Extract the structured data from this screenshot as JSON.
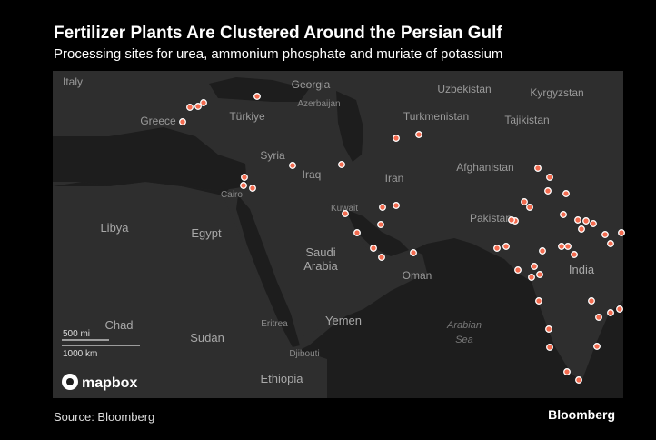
{
  "header": {
    "title": "Fertilizer Plants Are Clustered Around the Persian Gulf",
    "subtitle": "Processing sites for urea, ammonium phosphate and muriate of potassium"
  },
  "map": {
    "places": [
      "Italy",
      "Greece",
      "Türkiye",
      "Georgia",
      "Azerbaijan",
      "Uzbekistan",
      "Kyrgyzstan",
      "Turkmenistan",
      "Tajikistan",
      "Syria",
      "Iraq",
      "Iran",
      "Afghanistan",
      "Cairo",
      "Kuwait",
      "Pakistan",
      "Libya",
      "Egypt",
      "Saudi",
      "Arabia",
      "Oman",
      "India",
      "Chad",
      "Eritrea",
      "Yemen",
      "Arabian",
      "Sea",
      "Sudan",
      "Djibouti",
      "Ethiopia"
    ],
    "scale": [
      "500 mi",
      "1000 km"
    ],
    "attribution": "mapbox"
  },
  "footer": {
    "source": "Source: Bloomberg",
    "brand": "Bloomberg"
  }
}
